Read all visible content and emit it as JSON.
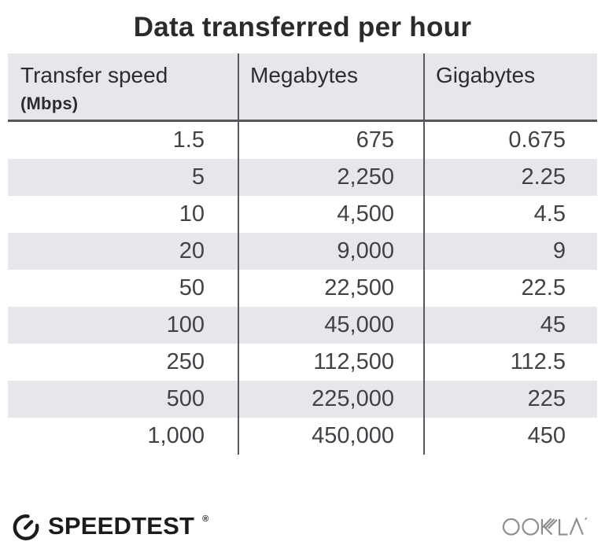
{
  "title": "Data transferred per hour",
  "table": {
    "columns": [
      {
        "label": "Transfer speed",
        "sublabel": "(Mbps)"
      },
      {
        "label": "Megabytes",
        "sublabel": ""
      },
      {
        "label": "Gigabytes",
        "sublabel": ""
      }
    ],
    "rows": [
      [
        "1.5",
        "675",
        "0.675"
      ],
      [
        "5",
        "2,250",
        "2.25"
      ],
      [
        "10",
        "4,500",
        "4.5"
      ],
      [
        "20",
        "9,000",
        "9"
      ],
      [
        "50",
        "22,500",
        "22.5"
      ],
      [
        "100",
        "45,000",
        "45"
      ],
      [
        "250",
        "112,500",
        "112.5"
      ],
      [
        "500",
        "225,000",
        "225"
      ],
      [
        "1,000",
        "450,000",
        "450"
      ]
    ]
  },
  "chart_data": {
    "type": "table",
    "title": "Data transferred per hour",
    "columns": [
      "Transfer speed (Mbps)",
      "Megabytes",
      "Gigabytes"
    ],
    "rows": [
      [
        1.5,
        675,
        0.675
      ],
      [
        5,
        2250,
        2.25
      ],
      [
        10,
        4500,
        4.5
      ],
      [
        20,
        9000,
        9
      ],
      [
        50,
        22500,
        22.5
      ],
      [
        100,
        45000,
        45
      ],
      [
        250,
        112500,
        112.5
      ],
      [
        500,
        225000,
        225
      ],
      [
        1000,
        450000,
        450
      ]
    ],
    "layout_hints": {
      "striped_rows": true,
      "column_dividers": true,
      "numbers_right_aligned": true
    }
  },
  "footer": {
    "brand": "SPEEDTEST",
    "brand_trademark": "®",
    "company": "OOKLA",
    "icons": {
      "gauge": "speedtest-gauge-icon",
      "wordmark": "ookla-wordmark"
    }
  },
  "colors": {
    "header_bg": "#e8e6eb",
    "stripe_bg": "#e8e6eb",
    "rule": "#59575b",
    "title_text": "#2b2a2c",
    "header_text": "#2e2c2e",
    "cell_text": "#434146",
    "brand_text": "#1c1c1c",
    "ookla_gray": "#8d8c8e"
  }
}
